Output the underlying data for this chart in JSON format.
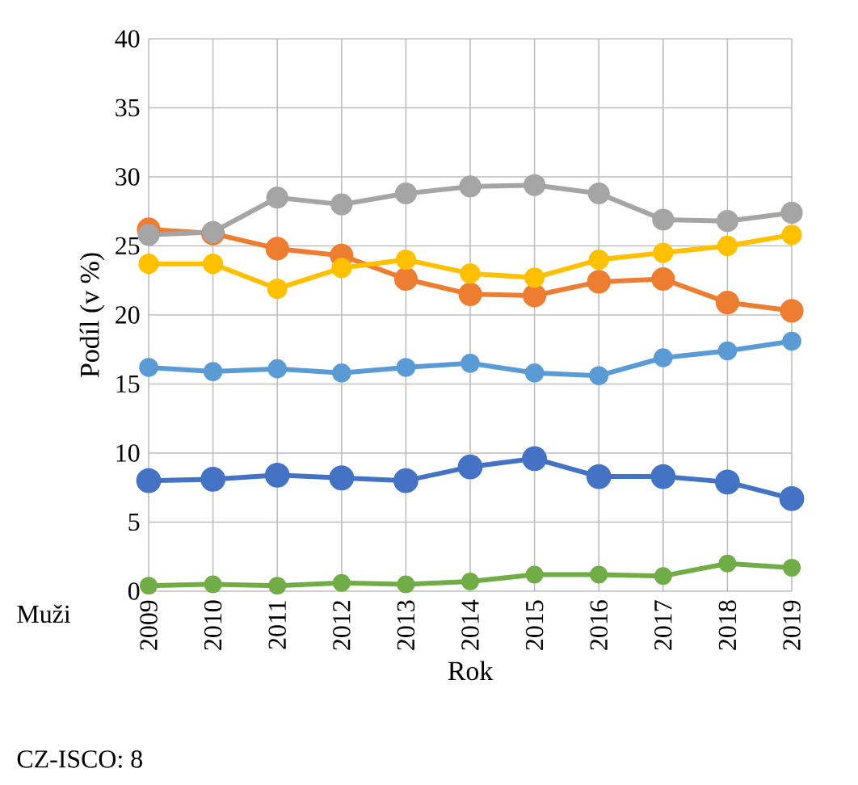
{
  "chart_data": {
    "type": "line",
    "ylabel": "Podíl (v %)",
    "xlabel": "Rok",
    "categories": [
      "2009",
      "2010",
      "2011",
      "2012",
      "2013",
      "2014",
      "2015",
      "2016",
      "2017",
      "2018",
      "2019"
    ],
    "ylim": [
      0,
      40
    ],
    "yticks": [
      0,
      5,
      10,
      15,
      20,
      25,
      30,
      35,
      40
    ],
    "grid": true,
    "marker": "circle",
    "line_style": "solid",
    "annotations": [
      "Muži",
      "CZ-ISCO: 8"
    ],
    "series": [
      {
        "color": "#4472c4",
        "values": [
          8.0,
          8.1,
          8.4,
          8.2,
          8.0,
          9.0,
          9.6,
          8.3,
          8.3,
          7.9,
          6.7
        ]
      },
      {
        "color": "#ed7d31",
        "values": [
          26.2,
          25.9,
          24.8,
          24.3,
          22.6,
          21.5,
          21.4,
          22.4,
          22.6,
          20.9,
          20.3
        ]
      },
      {
        "color": "#a5a5a5",
        "values": [
          25.8,
          26.0,
          28.5,
          28.0,
          28.8,
          29.3,
          29.4,
          28.8,
          26.9,
          26.8,
          27.4
        ]
      },
      {
        "color": "#ffc000",
        "values": [
          23.7,
          23.7,
          21.9,
          23.4,
          24.0,
          23.0,
          22.7,
          24.0,
          24.5,
          25.0,
          25.8
        ]
      },
      {
        "color": "#5b9bd5",
        "values": [
          16.2,
          15.9,
          16.1,
          15.8,
          16.2,
          16.5,
          15.8,
          15.6,
          16.9,
          17.4,
          18.1
        ]
      },
      {
        "color": "#70ad47",
        "values": [
          0.4,
          0.5,
          0.4,
          0.6,
          0.5,
          0.7,
          1.2,
          1.2,
          1.1,
          2.0,
          1.7
        ]
      }
    ]
  }
}
